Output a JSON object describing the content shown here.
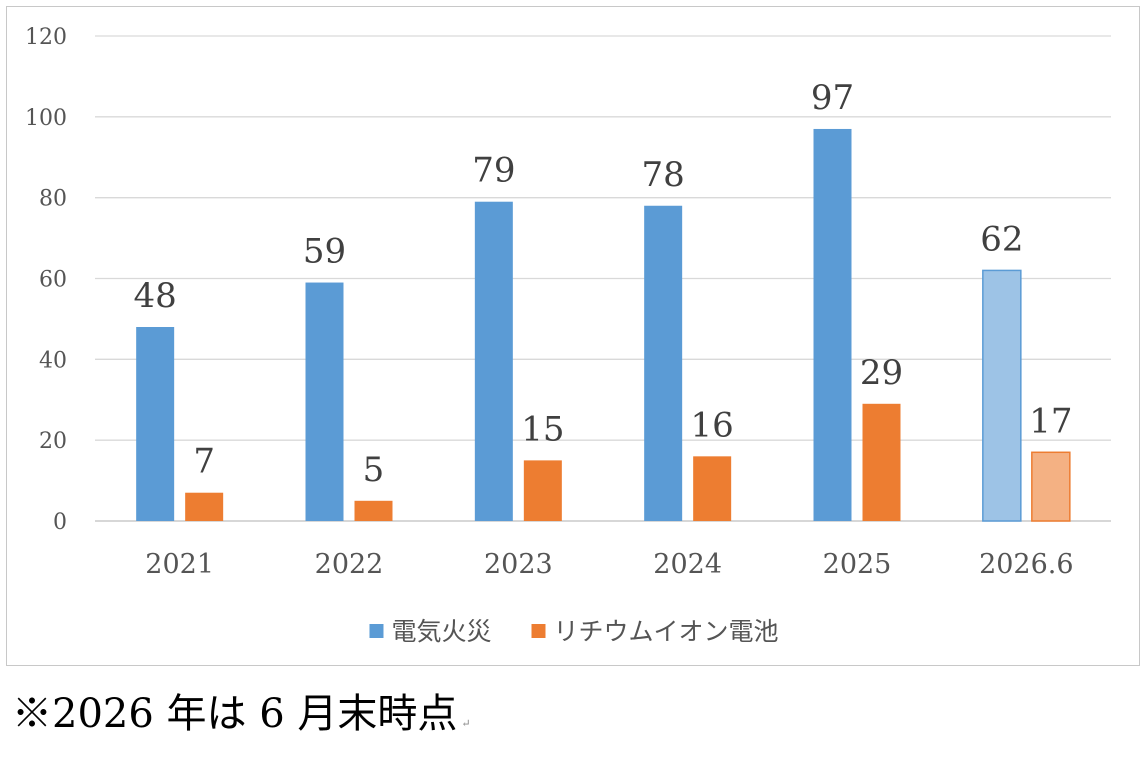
{
  "chart_data": {
    "type": "bar",
    "categories": [
      "2021",
      "2022",
      "2023",
      "2024",
      "2025",
      "2026.6"
    ],
    "series": [
      {
        "name": "電気火災",
        "values": [
          48,
          59,
          79,
          78,
          97,
          62
        ],
        "color": "#5B9BD5",
        "partial_color": "#9DC3E6"
      },
      {
        "name": "リチウムイオン電池",
        "values": [
          7,
          5,
          15,
          16,
          29,
          17
        ],
        "color": "#ED7D31",
        "partial_color": "#F4B183"
      }
    ],
    "partial_category": "2026.6",
    "ylim": [
      0,
      120
    ],
    "yticks": [
      "0",
      "20",
      "40",
      "60",
      "80",
      "100",
      "120"
    ],
    "grid": true,
    "legend_position": "bottom",
    "data_labels": true
  },
  "footnote": {
    "text": "※2026 年は 6 月末時点",
    "mark": "↵"
  }
}
